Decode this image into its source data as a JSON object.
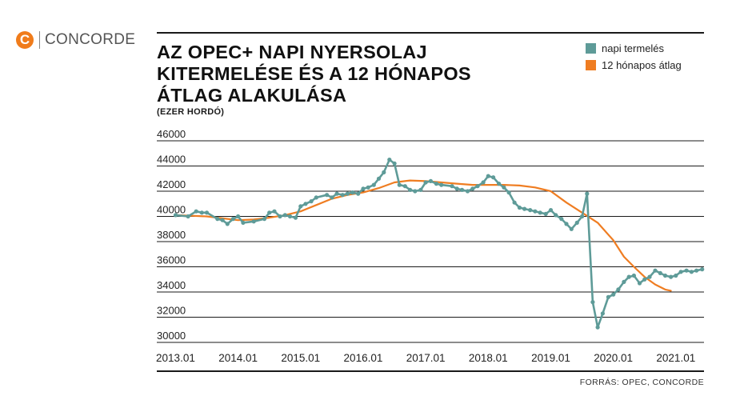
{
  "brand": {
    "symbol": "C",
    "name": "CONCORDE"
  },
  "colors": {
    "daily": "#5e9b98",
    "avg": "#ef7d22",
    "grid": "#1a1a1a"
  },
  "footer": {
    "source": "FORRÁS: OPEC, CONCORDE"
  },
  "chart_data": {
    "type": "line",
    "title_lines": [
      "AZ OPEC+ NAPI NYERSOLAJ",
      "KITERMELÉSE ÉS A 12 HÓNAPOS",
      "ÁTLAG ALAKULÁSA"
    ],
    "subtitle": "(EZER HORDÓ)",
    "ylim": [
      30000,
      46000
    ],
    "yticks": [
      30000,
      32000,
      34000,
      36000,
      38000,
      40000,
      42000,
      44000,
      46000
    ],
    "xlim": [
      2012.7,
      2021.45
    ],
    "xticks": [
      2013,
      2014,
      2015,
      2016,
      2017,
      2018,
      2019,
      2020,
      2021
    ],
    "xtick_labels": [
      "2013.01",
      "2014.01",
      "2015.01",
      "2016.01",
      "2017.01",
      "2018.01",
      "2019.01",
      "2020.01",
      "2021.01"
    ],
    "legend_position": "top-right",
    "series": [
      {
        "name": "napi termelés",
        "color": "#5e9b98",
        "x": [
          2013.0,
          2013.2,
          2013.33,
          2013.42,
          2013.5,
          2013.67,
          2013.75,
          2013.83,
          2013.92,
          2014.0,
          2014.08,
          2014.25,
          2014.42,
          2014.5,
          2014.58,
          2014.67,
          2014.75,
          2014.83,
          2014.92,
          2015.0,
          2015.08,
          2015.17,
          2015.25,
          2015.42,
          2015.5,
          2015.58,
          2015.67,
          2015.75,
          2015.83,
          2015.92,
          2016.0,
          2016.08,
          2016.17,
          2016.25,
          2016.33,
          2016.42,
          2016.5,
          2016.58,
          2016.67,
          2016.75,
          2016.83,
          2016.92,
          2017.0,
          2017.08,
          2017.17,
          2017.25,
          2017.42,
          2017.5,
          2017.58,
          2017.67,
          2017.75,
          2017.83,
          2017.92,
          2018.0,
          2018.08,
          2018.17,
          2018.25,
          2018.33,
          2018.42,
          2018.5,
          2018.58,
          2018.67,
          2018.75,
          2018.83,
          2018.92,
          2019.0,
          2019.08,
          2019.17,
          2019.25,
          2019.33,
          2019.42,
          2019.5,
          2019.58,
          2019.67,
          2019.75,
          2019.83,
          2019.92,
          2020.0,
          2020.08,
          2020.17,
          2020.25,
          2020.33,
          2020.42,
          2020.5,
          2020.58,
          2020.67,
          2020.75,
          2020.83,
          2020.92,
          2021.0,
          2021.08,
          2021.17,
          2021.25,
          2021.33,
          2021.42
        ],
        "values": [
          40100,
          40000,
          40400,
          40300,
          40300,
          39800,
          39700,
          39400,
          39800,
          40000,
          39500,
          39600,
          39800,
          40300,
          40400,
          40000,
          40100,
          40000,
          39900,
          40800,
          41000,
          41200,
          41500,
          41700,
          41500,
          41800,
          41700,
          41800,
          41900,
          41800,
          42200,
          42300,
          42500,
          43000,
          43500,
          44500,
          44200,
          42500,
          42400,
          42100,
          42000,
          42100,
          42700,
          42800,
          42600,
          42500,
          42400,
          42200,
          42100,
          42000,
          42200,
          42400,
          42700,
          43200,
          43100,
          42600,
          42300,
          41900,
          41100,
          40700,
          40600,
          40500,
          40400,
          40300,
          40200,
          40500,
          40100,
          39800,
          39400,
          39000,
          39500,
          40000,
          41800,
          33200,
          31200,
          32300,
          33600,
          33800,
          34200,
          34800,
          35200,
          35300,
          34700,
          35000,
          35200,
          35700,
          35500,
          35300,
          35200,
          35300,
          35600,
          35700,
          35600,
          35700,
          35800
        ]
      },
      {
        "name": "12 hónapos átlag",
        "color": "#ef7d22",
        "x": [
          2013.0,
          2013.25,
          2013.5,
          2013.75,
          2014.0,
          2014.25,
          2014.5,
          2014.75,
          2015.0,
          2015.25,
          2015.5,
          2015.75,
          2016.0,
          2016.25,
          2016.5,
          2016.75,
          2017.0,
          2017.25,
          2017.5,
          2017.75,
          2018.0,
          2018.25,
          2018.5,
          2018.75,
          2019.0,
          2019.25,
          2019.5,
          2019.75,
          2020.0,
          2020.17,
          2020.33,
          2020.5,
          2020.67,
          2020.83,
          2020.92
        ],
        "values": [
          40100,
          40050,
          40000,
          39850,
          39700,
          39750,
          39900,
          40100,
          40400,
          40900,
          41400,
          41700,
          41900,
          42250,
          42700,
          42850,
          42800,
          42700,
          42600,
          42500,
          42500,
          42500,
          42450,
          42300,
          42000,
          41100,
          40300,
          39500,
          38100,
          36800,
          36000,
          35200,
          34600,
          34200,
          34100
        ]
      }
    ]
  }
}
